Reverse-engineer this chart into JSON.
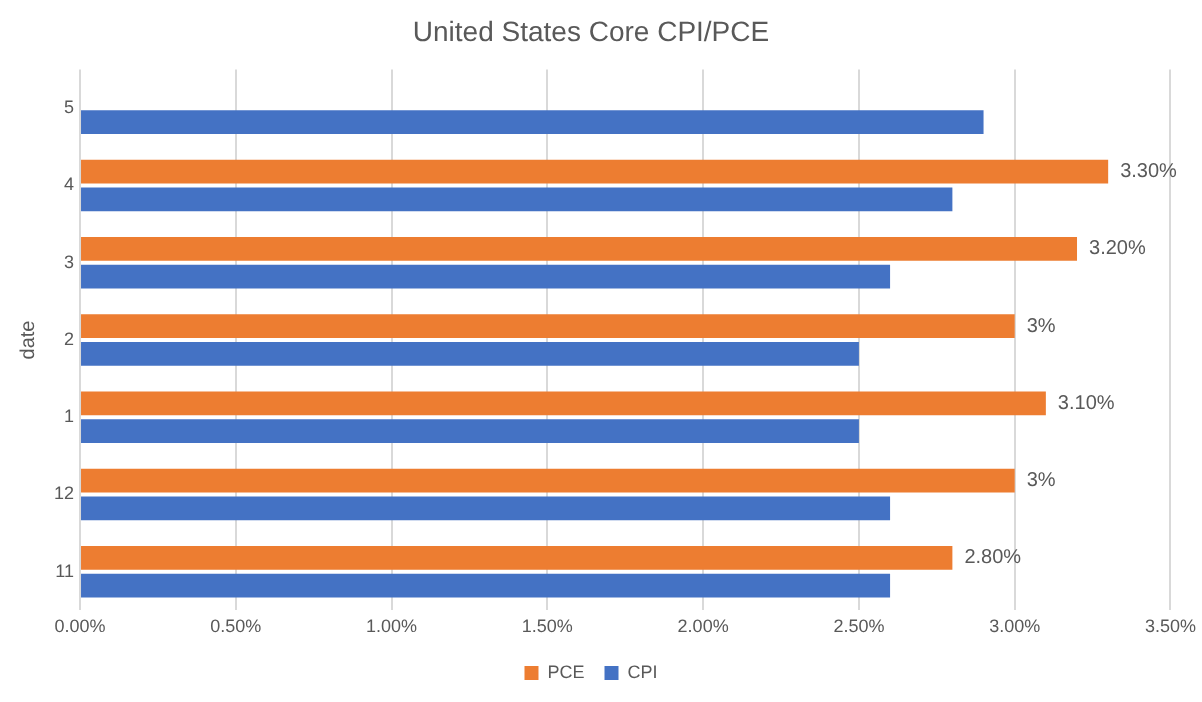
{
  "chart_data": {
    "type": "bar",
    "orientation": "horizontal",
    "title": "United States Core CPI/PCE",
    "ylabel": "date",
    "categories": [
      "5",
      "4",
      "3",
      "2",
      "1",
      "12",
      "11"
    ],
    "series": [
      {
        "name": "PCE",
        "color": "#ed7d31",
        "values": [
          null,
          3.3,
          3.2,
          3,
          3.1,
          3,
          2.8
        ],
        "value_labels": [
          null,
          "3.30%",
          "3.20%",
          "3%",
          "3.10%",
          "3%",
          "2.80%"
        ]
      },
      {
        "name": "CPI",
        "color": "#4472c4",
        "values": [
          2.9,
          2.8,
          2.6,
          2.5,
          2.5,
          2.6,
          2.6
        ]
      }
    ],
    "xlim": [
      0,
      3.5
    ],
    "xticks": [
      {
        "value": 0,
        "label": "0.00%"
      },
      {
        "value": 0.5,
        "label": "0.50%"
      },
      {
        "value": 1,
        "label": "1.00%"
      },
      {
        "value": 1.5,
        "label": "1.50%"
      },
      {
        "value": 2,
        "label": "2.00%"
      },
      {
        "value": 2.5,
        "label": "2.50%"
      },
      {
        "value": 3,
        "label": "3.00%"
      },
      {
        "value": 3.5,
        "label": "3.50%"
      }
    ],
    "grid": "x",
    "legend": "bottom"
  }
}
